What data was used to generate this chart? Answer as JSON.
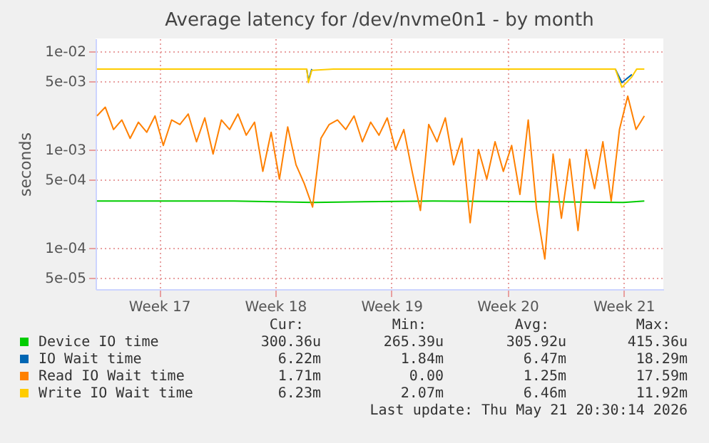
{
  "chart_data": {
    "type": "line",
    "title": "Average latency for /dev/nvme0n1 - by month",
    "ylabel": "seconds",
    "xlim": [
      "2026-04-19T16:00",
      "2026-05-23T21:30"
    ],
    "xticks": [
      {
        "value": "2026-04-23T12:00",
        "label": "Week 17"
      },
      {
        "value": "2026-04-30T12:00",
        "label": "Week 18"
      },
      {
        "value": "2026-05-07T12:00",
        "label": "Week 19"
      },
      {
        "value": "2026-05-14T12:00",
        "label": "Week 20"
      },
      {
        "value": "2026-05-21T12:00",
        "label": "Week 21"
      }
    ],
    "ylim": [
      3.8e-05,
      0.0135
    ],
    "yticks": [
      {
        "value": 5e-05,
        "label": "5e-05"
      },
      {
        "value": 0.0001,
        "label": "1e-04"
      },
      {
        "value": 0.0005,
        "label": "5e-04"
      },
      {
        "value": 0.001,
        "label": "1e-03"
      },
      {
        "value": 0.005,
        "label": "5e-03"
      },
      {
        "value": 0.01,
        "label": "1e-02"
      }
    ],
    "log": true,
    "grid": true,
    "legend": "bottom",
    "series": [
      {
        "name": "Device IO time",
        "color": "#00cc00",
        "x": [
          "2026-04-19T18:00",
          "2026-04-28T00:00",
          "2026-05-02T19:00",
          "2026-05-10T00:00",
          "2026-05-21T12:00",
          "2026-05-22T18:00"
        ],
        "values": [
          0.0003,
          0.0003,
          0.00029,
          0.0003,
          0.00029,
          0.0003
        ]
      },
      {
        "name": "IO Wait time",
        "color": "#0066b3",
        "x": [
          "2026-05-02T09:30",
          "2026-05-02T12:00",
          "2026-05-02T16:50",
          "2026-05-10T00:00",
          "2026-05-21T00:00",
          "2026-05-21T09:30",
          "2026-05-22T00:00"
        ],
        "values": [
          0.0066,
          0.005,
          0.0066,
          null,
          0.0066,
          0.0048,
          0.0058
        ]
      },
      {
        "name": "Read IO Wait time",
        "color": "#ff8000",
        "x": [
          "2026-04-19T18:00",
          "2026-04-20T06:00",
          "2026-04-20T18:00",
          "2026-04-21T06:00",
          "2026-04-21T18:00",
          "2026-04-22T06:00",
          "2026-04-22T18:00",
          "2026-04-23T06:00",
          "2026-04-23T18:00",
          "2026-04-24T06:00",
          "2026-04-24T18:00",
          "2026-04-25T06:00",
          "2026-04-25T18:00",
          "2026-04-26T06:00",
          "2026-04-26T18:00",
          "2026-04-27T06:00",
          "2026-04-27T18:00",
          "2026-04-28T06:00",
          "2026-04-28T18:00",
          "2026-04-29T06:00",
          "2026-04-29T18:00",
          "2026-04-30T06:00",
          "2026-04-30T18:00",
          "2026-05-01T06:00",
          "2026-05-01T18:00",
          "2026-05-02T06:00",
          "2026-05-02T18:00",
          "2026-05-03T06:00",
          "2026-05-03T18:00",
          "2026-05-04T06:00",
          "2026-05-04T18:00",
          "2026-05-05T06:00",
          "2026-05-05T18:00",
          "2026-05-06T06:00",
          "2026-05-06T18:00",
          "2026-05-07T06:00",
          "2026-05-07T18:00",
          "2026-05-08T06:00",
          "2026-05-08T18:00",
          "2026-05-09T06:00",
          "2026-05-09T18:00",
          "2026-05-10T06:00",
          "2026-05-10T18:00",
          "2026-05-11T06:00",
          "2026-05-11T18:00",
          "2026-05-12T06:00",
          "2026-05-12T18:00",
          "2026-05-13T06:00",
          "2026-05-13T18:00",
          "2026-05-14T06:00",
          "2026-05-14T18:00",
          "2026-05-15T06:00",
          "2026-05-15T18:00",
          "2026-05-16T06:00",
          "2026-05-16T18:00",
          "2026-05-17T06:00",
          "2026-05-17T18:00",
          "2026-05-18T06:00",
          "2026-05-18T18:00",
          "2026-05-19T06:00",
          "2026-05-19T18:00",
          "2026-05-20T06:00",
          "2026-05-20T18:00",
          "2026-05-21T06:00",
          "2026-05-21T18:00",
          "2026-05-22T06:00",
          "2026-05-22T18:00"
        ],
        "values": [
          0.0022,
          0.0027,
          0.0016,
          0.002,
          0.0013,
          0.0019,
          0.0015,
          0.0022,
          0.0011,
          0.002,
          0.0018,
          0.0023,
          0.0012,
          0.0021,
          0.0009,
          0.002,
          0.0016,
          0.0023,
          0.0014,
          0.0019,
          0.0006,
          0.0015,
          0.0005,
          0.0017,
          0.0007,
          0.00045,
          0.00026,
          0.0013,
          0.0018,
          0.002,
          0.0016,
          0.0022,
          0.0012,
          0.0019,
          0.0014,
          0.0021,
          0.001,
          0.0016,
          0.0006,
          0.00024,
          0.0018,
          0.0012,
          0.0021,
          0.0007,
          0.0013,
          0.00018,
          0.001,
          0.0005,
          0.0012,
          0.0006,
          0.0011,
          0.00035,
          0.002,
          0.00025,
          7.7e-05,
          0.0009,
          0.0002,
          0.0008,
          0.00015,
          0.001,
          0.0004,
          0.0012,
          0.0003,
          0.0016,
          0.0035,
          0.0016,
          0.0022
        ]
      },
      {
        "name": "Write IO Wait time",
        "color": "#ffcc00",
        "x": [
          "2026-04-19T18:00",
          "2026-05-02T09:30",
          "2026-05-02T12:00",
          "2026-05-02T16:50",
          "2026-05-04T00:00",
          "2026-05-21T00:00",
          "2026-05-21T09:30",
          "2026-05-22T00:00",
          "2026-05-22T07:00",
          "2026-05-22T18:00"
        ],
        "values": [
          0.0066,
          0.0066,
          0.0048,
          0.0064,
          0.0066,
          0.0066,
          0.0043,
          0.0055,
          0.0066,
          0.0066
        ]
      }
    ],
    "annotations": [
      "Cur:",
      "Min:",
      "Avg:",
      "Max:",
      "300.36u",
      "265.39u",
      "305.92u",
      "415.36u",
      "6.22m",
      "1.84m",
      "6.47m",
      "18.29m",
      "1.71m",
      "0.00",
      "1.25m",
      "17.59m",
      "6.23m",
      "2.07m",
      "6.46m",
      "11.92m",
      "Last update: Thu May 21 20:30:14 2026"
    ]
  }
}
